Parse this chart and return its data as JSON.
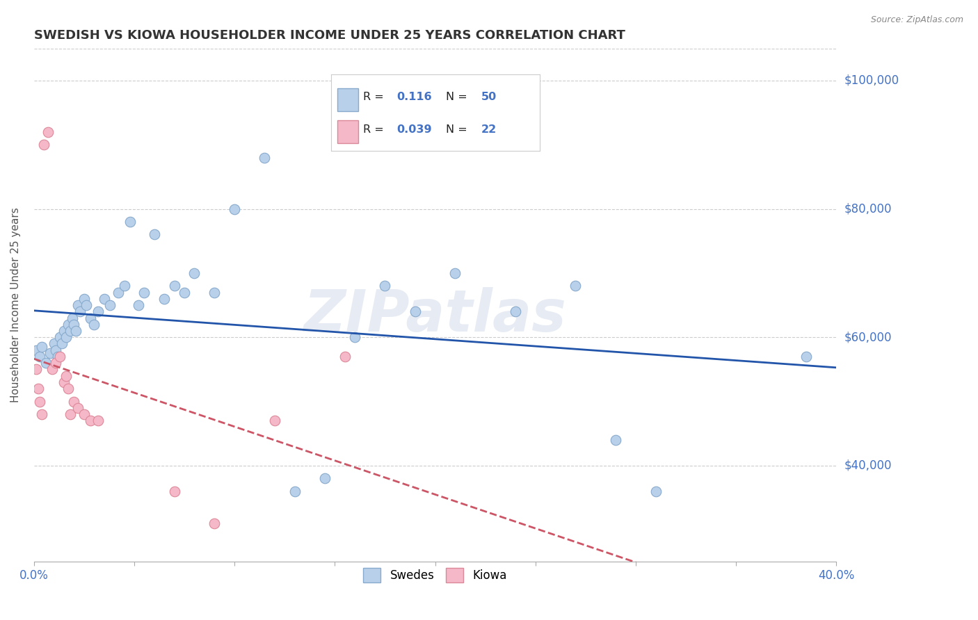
{
  "title": "SWEDISH VS KIOWA HOUSEHOLDER INCOME UNDER 25 YEARS CORRELATION CHART",
  "source_text": "Source: ZipAtlas.com",
  "ylabel": "Householder Income Under 25 years",
  "xlim": [
    0.0,
    0.4
  ],
  "ylim": [
    25000,
    105000
  ],
  "yticks": [
    40000,
    60000,
    80000,
    100000
  ],
  "ytick_labels": [
    "$40,000",
    "$60,000",
    "$80,000",
    "$100,000"
  ],
  "legend_entries": [
    {
      "label": "Swedes",
      "R": "0.116",
      "N": "50",
      "color": "#b8d0ea"
    },
    {
      "label": "Kiowa",
      "R": "0.039",
      "N": "22",
      "color": "#f4b8c8"
    }
  ],
  "swedes_x": [
    0.001,
    0.003,
    0.004,
    0.006,
    0.008,
    0.01,
    0.011,
    0.012,
    0.013,
    0.014,
    0.015,
    0.016,
    0.017,
    0.018,
    0.019,
    0.02,
    0.021,
    0.022,
    0.023,
    0.025,
    0.026,
    0.028,
    0.03,
    0.032,
    0.035,
    0.038,
    0.042,
    0.045,
    0.048,
    0.052,
    0.055,
    0.06,
    0.065,
    0.07,
    0.075,
    0.08,
    0.09,
    0.1,
    0.115,
    0.13,
    0.145,
    0.16,
    0.175,
    0.19,
    0.21,
    0.24,
    0.27,
    0.29,
    0.31,
    0.385
  ],
  "swedes_y": [
    58000,
    57000,
    58500,
    56000,
    57500,
    59000,
    58000,
    57000,
    60000,
    59000,
    61000,
    60000,
    62000,
    61000,
    63000,
    62000,
    61000,
    65000,
    64000,
    66000,
    65000,
    63000,
    62000,
    64000,
    66000,
    65000,
    67000,
    68000,
    78000,
    65000,
    67000,
    76000,
    66000,
    68000,
    67000,
    70000,
    67000,
    80000,
    88000,
    36000,
    38000,
    60000,
    68000,
    64000,
    70000,
    64000,
    68000,
    44000,
    36000,
    57000
  ],
  "kiowa_x": [
    0.001,
    0.002,
    0.003,
    0.004,
    0.005,
    0.007,
    0.009,
    0.011,
    0.013,
    0.015,
    0.016,
    0.017,
    0.018,
    0.02,
    0.022,
    0.025,
    0.028,
    0.032,
    0.07,
    0.09,
    0.12,
    0.155
  ],
  "kiowa_y": [
    55000,
    52000,
    50000,
    48000,
    90000,
    92000,
    55000,
    56000,
    57000,
    53000,
    54000,
    52000,
    48000,
    50000,
    49000,
    48000,
    47000,
    47000,
    36000,
    31000,
    47000,
    57000
  ],
  "swedes_line_color": "#2255aa",
  "kiowa_line_color": "#cc5566",
  "background_color": "#ffffff",
  "grid_color": "#cccccc",
  "watermark": "ZIPatlas",
  "title_color": "#333333",
  "axis_label_color": "#4472c4",
  "scatter_size_swedes": 110,
  "scatter_size_kiowa": 110
}
